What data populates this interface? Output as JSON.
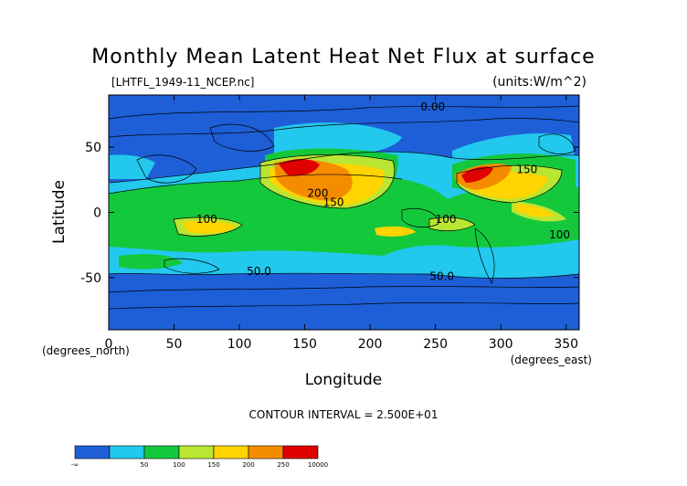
{
  "chart_data": {
    "type": "heatmap",
    "title": "Monthly Mean Latent Heat Net Flux at surface",
    "subtitle_left": "[LHTFL_1949-11_NCEP.nc]",
    "subtitle_right": "(units:W/m^2)",
    "xlabel": "Longitude",
    "ylabel": "Latitude",
    "xlabel_unit": "(degrees_east)",
    "ylabel_unit": "(degrees_north)",
    "xlim": [
      0,
      360
    ],
    "ylim": [
      -90,
      90
    ],
    "xticks": [
      0,
      50,
      100,
      150,
      200,
      250,
      300,
      350
    ],
    "yticks": [
      50,
      0,
      -50
    ],
    "contour_interval_text": "CONTOUR INTERVAL = 2.500E+01",
    "contour_labels": [
      {
        "text": "0.00",
        "lon": 248,
        "lat": 78
      },
      {
        "text": "150",
        "lon": 320,
        "lat": 30
      },
      {
        "text": "200",
        "lon": 160,
        "lat": 12
      },
      {
        "text": "150",
        "lon": 172,
        "lat": 5
      },
      {
        "text": "100",
        "lon": 75,
        "lat": -8
      },
      {
        "text": "100",
        "lon": 258,
        "lat": -8
      },
      {
        "text": "100",
        "lon": 345,
        "lat": -20
      },
      {
        "text": "50.0",
        "lon": 115,
        "lat": -48
      },
      {
        "text": "50.0",
        "lon": 255,
        "lat": -52
      }
    ],
    "colorbar": {
      "bins": [
        {
          "color": "#1e5fd8",
          "label": "-∞"
        },
        {
          "color": "#22c8ee",
          "label": "50"
        },
        {
          "color": "#14c83c",
          "label": "100"
        },
        {
          "color": "#b8e632",
          "label": "150"
        },
        {
          "color": "#ffd400",
          "label": "200"
        },
        {
          "color": "#f58c00",
          "label": "250"
        },
        {
          "color": "#e00000",
          "label": "10000"
        }
      ]
    },
    "grid": false
  }
}
